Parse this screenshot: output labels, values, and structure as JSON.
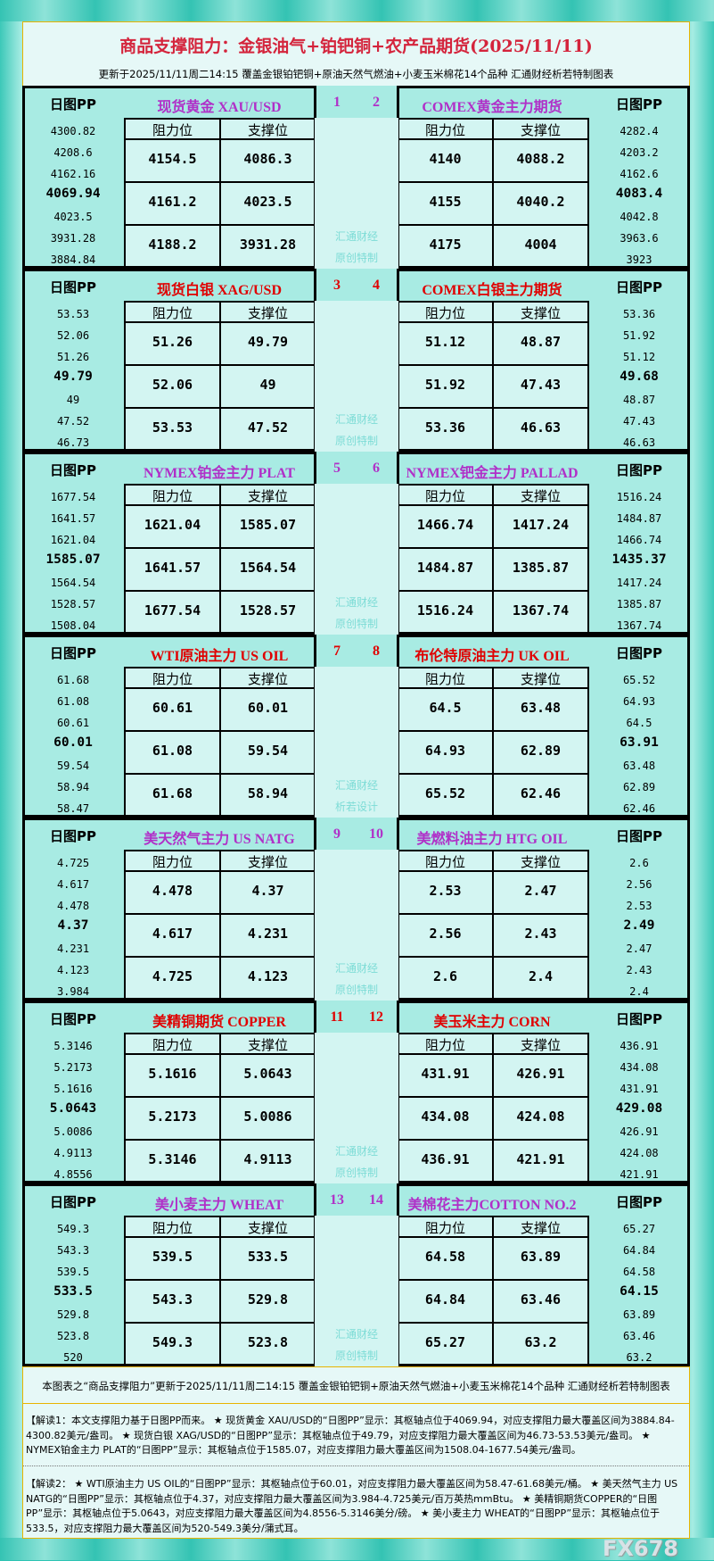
{
  "title": "商品支撑阻力：金银油气+铂钯铜+农产品期货(2025/11/11)",
  "subtitle": "更新于2025/11/11周二14:15  覆盖金银铂钯铜+原油天然气燃油+小麦玉米棉花14个品种  汇通财经析若特制图表",
  "labels": {
    "pp": "日图PP",
    "resistance": "阻力位",
    "support": "支撑位"
  },
  "colors": {
    "red": "#e00000",
    "purple": "#b030c8",
    "pp_bg": "#a8ebe3",
    "cell_bg": "#d3f5f2"
  },
  "blocks": [
    {
      "color": "purple",
      "nums": [
        "1",
        "2"
      ],
      "wm": [
        "汇通财经",
        "原创特制"
      ],
      "left": {
        "name": "现货黄金  XAU/USD",
        "pp": [
          "4300.82",
          "4208.6",
          "4162.16",
          "4069.94",
          "4023.5",
          "3931.28",
          "3884.84"
        ],
        "res": [
          "4154.5",
          "4161.2",
          "4188.2"
        ],
        "sup": [
          "4086.3",
          "4023.5",
          "3931.28"
        ]
      },
      "right": {
        "name": "COMEX黄金主力期货",
        "pp": [
          "4282.4",
          "4203.2",
          "4162.6",
          "4083.4",
          "4042.8",
          "3963.6",
          "3923"
        ],
        "res": [
          "4140",
          "4155",
          "4175"
        ],
        "sup": [
          "4088.2",
          "4040.2",
          "4004"
        ]
      }
    },
    {
      "color": "red",
      "nums": [
        "3",
        "4"
      ],
      "wm": [
        "汇通财经",
        "原创特制"
      ],
      "left": {
        "name": "现货白银  XAG/USD",
        "pp": [
          "53.53",
          "52.06",
          "51.26",
          "49.79",
          "49",
          "47.52",
          "46.73"
        ],
        "res": [
          "51.26",
          "52.06",
          "53.53"
        ],
        "sup": [
          "49.79",
          "49",
          "47.52"
        ]
      },
      "right": {
        "name": "COMEX白银主力期货",
        "pp": [
          "53.36",
          "51.92",
          "51.12",
          "49.68",
          "48.87",
          "47.43",
          "46.63"
        ],
        "res": [
          "51.12",
          "51.92",
          "53.36"
        ],
        "sup": [
          "48.87",
          "47.43",
          "46.63"
        ]
      }
    },
    {
      "color": "purple",
      "nums": [
        "5",
        "6"
      ],
      "wm": [
        "汇通财经",
        "原创特制"
      ],
      "left": {
        "name": "NYMEX铂金主力  PLAT",
        "pp": [
          "1677.54",
          "1641.57",
          "1621.04",
          "1585.07",
          "1564.54",
          "1528.57",
          "1508.04"
        ],
        "res": [
          "1621.04",
          "1641.57",
          "1677.54"
        ],
        "sup": [
          "1585.07",
          "1564.54",
          "1528.57"
        ]
      },
      "right": {
        "name": "NYMEX钯金主力  PALLAD",
        "pp": [
          "1516.24",
          "1484.87",
          "1466.74",
          "1435.37",
          "1417.24",
          "1385.87",
          "1367.74"
        ],
        "res": [
          "1466.74",
          "1484.87",
          "1516.24"
        ],
        "sup": [
          "1417.24",
          "1385.87",
          "1367.74"
        ]
      }
    },
    {
      "color": "red",
      "nums": [
        "7",
        "8"
      ],
      "wm": [
        "汇通财经",
        "析若设计"
      ],
      "left": {
        "name": "WTI原油主力  US OIL",
        "pp": [
          "61.68",
          "61.08",
          "60.61",
          "60.01",
          "59.54",
          "58.94",
          "58.47"
        ],
        "res": [
          "60.61",
          "61.08",
          "61.68"
        ],
        "sup": [
          "60.01",
          "59.54",
          "58.94"
        ]
      },
      "right": {
        "name": "布伦特原油主力  UK OIL",
        "pp": [
          "65.52",
          "64.93",
          "64.5",
          "63.91",
          "63.48",
          "62.89",
          "62.46"
        ],
        "res": [
          "64.5",
          "64.93",
          "65.52"
        ],
        "sup": [
          "63.48",
          "62.89",
          "62.46"
        ]
      }
    },
    {
      "color": "purple",
      "nums": [
        "9",
        "10"
      ],
      "wm": [
        "汇通财经",
        "原创特制"
      ],
      "left": {
        "name": "美天然气主力  US NATG",
        "pp": [
          "4.725",
          "4.617",
          "4.478",
          "4.37",
          "4.231",
          "4.123",
          "3.984"
        ],
        "res": [
          "4.478",
          "4.617",
          "4.725"
        ],
        "sup": [
          "4.37",
          "4.231",
          "4.123"
        ]
      },
      "right": {
        "name": "美燃料油主力  HTG OIL",
        "pp": [
          "2.6",
          "2.56",
          "2.53",
          "2.49",
          "2.47",
          "2.43",
          "2.4"
        ],
        "res": [
          "2.53",
          "2.56",
          "2.6"
        ],
        "sup": [
          "2.47",
          "2.43",
          "2.4"
        ]
      }
    },
    {
      "color": "red",
      "nums": [
        "11",
        "12"
      ],
      "wm": [
        "汇通财经",
        "原创特制"
      ],
      "left": {
        "name": "美精铜期货  COPPER",
        "pp": [
          "5.3146",
          "5.2173",
          "5.1616",
          "5.0643",
          "5.0086",
          "4.9113",
          "4.8556"
        ],
        "res": [
          "5.1616",
          "5.2173",
          "5.3146"
        ],
        "sup": [
          "5.0643",
          "5.0086",
          "4.9113"
        ]
      },
      "right": {
        "name": "美玉米主力  CORN",
        "pp": [
          "436.91",
          "434.08",
          "431.91",
          "429.08",
          "426.91",
          "424.08",
          "421.91"
        ],
        "res": [
          "431.91",
          "434.08",
          "436.91"
        ],
        "sup": [
          "426.91",
          "424.08",
          "421.91"
        ]
      }
    },
    {
      "color": "purple",
      "nums": [
        "13",
        "14"
      ],
      "wm": [
        "汇通财经",
        "原创特制"
      ],
      "left": {
        "name": "美小麦主力  WHEAT",
        "pp": [
          "549.3",
          "543.3",
          "539.5",
          "533.5",
          "529.8",
          "523.8",
          "520"
        ],
        "res": [
          "539.5",
          "543.3",
          "549.3"
        ],
        "sup": [
          "533.5",
          "529.8",
          "523.8"
        ]
      },
      "right": {
        "name": "美棉花主力COTTON NO.2",
        "pp": [
          "65.27",
          "64.84",
          "64.58",
          "64.15",
          "63.89",
          "63.46",
          "63.2"
        ],
        "res": [
          "64.58",
          "64.84",
          "65.27"
        ],
        "sup": [
          "63.89",
          "63.46",
          "63.2"
        ]
      }
    }
  ],
  "footer": {
    "line": "本图表之“商品支撑阻力”更新于2025/11/11周二14:15  覆盖金银铂钯铜+原油天然气燃油+小麦玉米棉花14个品种  汇通财经析若特制图表",
    "note1": "【解读1：本文支撑阻力基于日图PP而来。 ★ 现货黄金 XAU/USD的“日图PP”显示：其枢轴点位于4069.94，对应支撑阻力最大覆盖区间为3884.84-4300.82美元/盎司。 ★ 现货白银 XAG/USD的“日图PP”显示：其枢轴点位于49.79，对应支撑阻力最大覆盖区间为46.73-53.53美元/盎司。 ★ NYMEX铂金主力 PLAT的“日图PP”显示：其枢轴点位于1585.07，对应支撑阻力最大覆盖区间为1508.04-1677.54美元/盎司。",
    "note2": "【解读2： ★ WTI原油主力 US OIL的“日图PP”显示：其枢轴点位于60.01，对应支撑阻力最大覆盖区间为58.47-61.68美元/桶。 ★ 美天然气主力 US NATG的“日图PP”显示：其枢轴点位于4.37，对应支撑阻力最大覆盖区间为3.984-4.725美元/百万英热mmBtu。 ★ 美精铜期货COPPER的“日图PP”显示：其枢轴点位于5.0643，对应支撑阻力最大覆盖区间为4.8556-5.3146美分/磅。 ★ 美小麦主力 WHEAT的“日图PP”显示：其枢轴点位于533.5，对应支撑阻力最大覆盖区间为520-549.3美分/蒲式耳。",
    "watermark": "FX678"
  }
}
